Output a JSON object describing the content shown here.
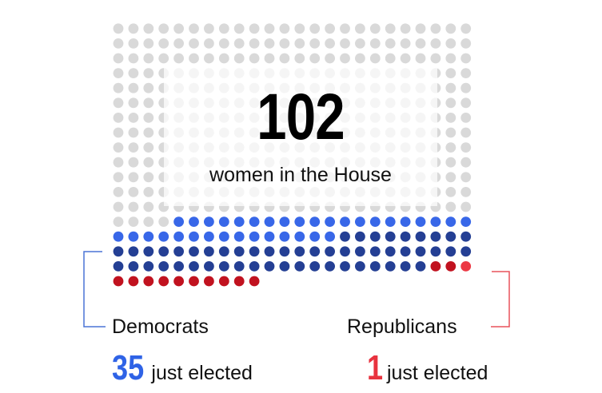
{
  "chart_data": {
    "type": "waffle",
    "total_women": "102",
    "total_caption": "women in the House",
    "total_seats": 435,
    "grid": {
      "columns": 24,
      "fill_order": "right-to-left from bottom-right, Democrats then Republicans continuing into the last row"
    },
    "series": [
      {
        "name": "Democrats",
        "incumbent": 54,
        "newly_elected": 35,
        "total": 89
      },
      {
        "name": "Republicans",
        "incumbent": 12,
        "newly_elected": 1,
        "total": 13
      }
    ],
    "annotations": {
      "democrats": {
        "label": "Democrats",
        "count": "35",
        "text": "just elected"
      },
      "republicans": {
        "label": "Republicans",
        "count": "1",
        "text": "just elected"
      }
    },
    "colors": {
      "empty_seat": "#d9d9d9",
      "democrat_new": "#3867e8",
      "democrat_incumbent": "#243f94",
      "republican_new": "#ec3844",
      "republican_incumbent": "#c1121f",
      "democrat_bracket": "#4a74d6",
      "republican_bracket": "#e8525b"
    }
  }
}
